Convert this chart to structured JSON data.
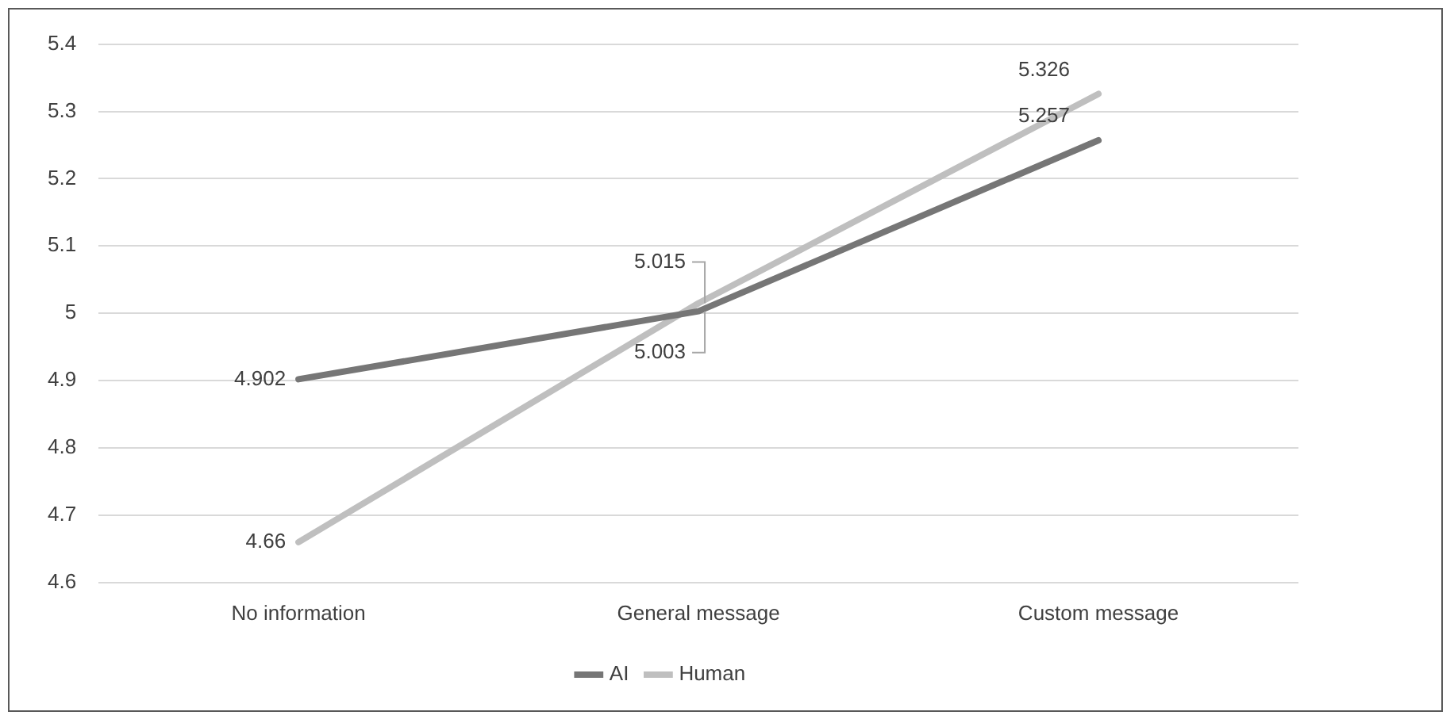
{
  "chart_data": {
    "type": "line",
    "categories": [
      "No information",
      "General message",
      "Custom message"
    ],
    "series": [
      {
        "name": "AI",
        "color": "#767676",
        "values": [
          4.902,
          5.003,
          5.257
        ]
      },
      {
        "name": "Human",
        "color": "#bfbfbf",
        "values": [
          4.66,
          5.015,
          5.326
        ]
      }
    ],
    "ylim": [
      4.6,
      5.4
    ],
    "yticks": [
      4.6,
      4.7,
      4.8,
      4.9,
      5,
      5.1,
      5.2,
      5.3,
      5.4
    ],
    "grid": "y",
    "legend": "bottom",
    "marker": "none",
    "line_style": "solid",
    "data_labels": true
  }
}
